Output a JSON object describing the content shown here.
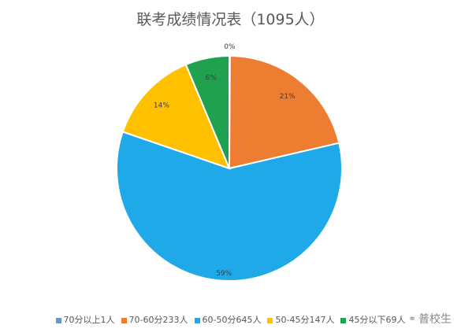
{
  "chart_data": {
    "type": "pie",
    "title": "联考成绩情况表（1095人）",
    "categories": [
      "70分以上1人",
      "70-60分233人",
      "60-50分645人",
      "50-45分147人",
      "45分以下69人"
    ],
    "values": [
      1,
      233,
      645,
      147,
      69
    ],
    "labels": [
      "0%",
      "21%",
      "59%",
      "14%",
      "6%"
    ],
    "colors": [
      "#5b9bd5",
      "#ed7d31",
      "#1fa9e8",
      "#ffc000",
      "#1fa14f"
    ],
    "legend_position": "bottom"
  },
  "watermark": {
    "icon": "wechat-icon",
    "text": "普校生"
  }
}
